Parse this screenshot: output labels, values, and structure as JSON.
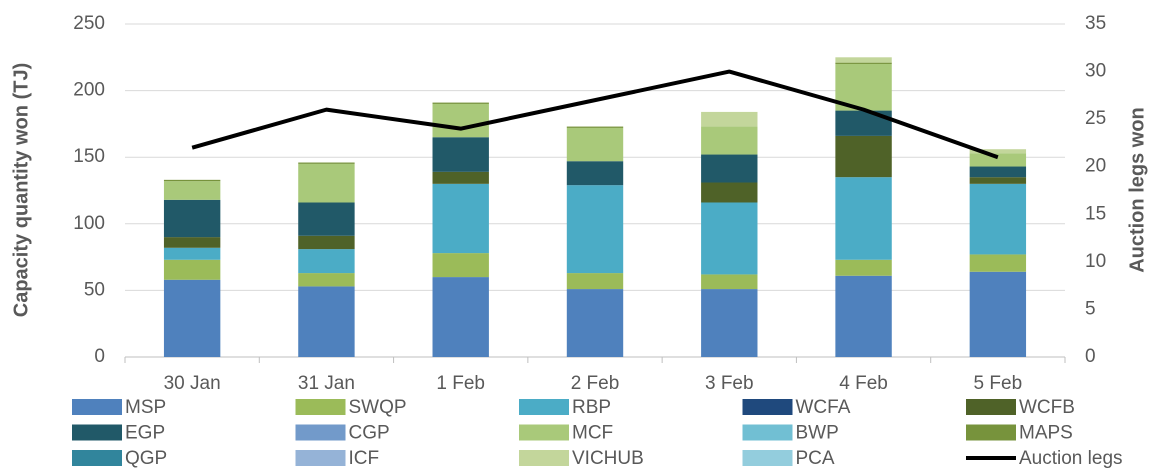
{
  "chart_data": {
    "type": "bar",
    "stacked": true,
    "categories": [
      "30 Jan",
      "31 Jan",
      "1 Feb",
      "2 Feb",
      "3 Feb",
      "4 Feb",
      "5 Feb"
    ],
    "ylabel": "Capacity quantity won (TJ)",
    "y2label": "Auction legs won",
    "ylim": [
      0,
      250
    ],
    "yticks": [
      0,
      50,
      100,
      150,
      200,
      250
    ],
    "y2lim": [
      0,
      35
    ],
    "y2ticks": [
      0,
      5,
      10,
      15,
      20,
      25,
      30,
      35
    ],
    "grid": true,
    "legend": "bottom",
    "series": [
      {
        "name": "MSP",
        "color": "#4f81bd",
        "values": [
          58,
          53,
          60,
          51,
          51,
          61,
          64
        ]
      },
      {
        "name": "SWQP",
        "color": "#9bbb59",
        "values": [
          15,
          10,
          18,
          12,
          11,
          12,
          13
        ]
      },
      {
        "name": "RBP",
        "color": "#4bacc6",
        "values": [
          9,
          18,
          52,
          66,
          54,
          62,
          53
        ]
      },
      {
        "name": "WCFA",
        "color": "#1f497d",
        "values": [
          0,
          0,
          0,
          0,
          0,
          0,
          0
        ]
      },
      {
        "name": "WCFB",
        "color": "#4f6228",
        "values": [
          8,
          10,
          9,
          0,
          15,
          31,
          5
        ]
      },
      {
        "name": "EGP",
        "color": "#215968",
        "values": [
          28,
          25,
          26,
          18,
          21,
          19,
          8
        ]
      },
      {
        "name": "CGP",
        "color": "#729aca",
        "values": [
          0,
          0,
          0,
          0,
          0,
          0,
          0
        ]
      },
      {
        "name": "MCF",
        "color": "#a9c97a",
        "values": [
          14,
          29,
          25,
          25,
          21,
          35,
          10
        ]
      },
      {
        "name": "BWP",
        "color": "#71bfd3",
        "values": [
          0,
          0,
          0,
          0,
          0,
          0,
          0
        ]
      },
      {
        "name": "MAPS",
        "color": "#77933c",
        "values": [
          1,
          1,
          1,
          1,
          0,
          1,
          0
        ]
      },
      {
        "name": "QGP",
        "color": "#31859c",
        "values": [
          0,
          0,
          0,
          0,
          0,
          0,
          0
        ]
      },
      {
        "name": "ICF",
        "color": "#95b3d7",
        "values": [
          0,
          0,
          0,
          0,
          0,
          0,
          0
        ]
      },
      {
        "name": "VICHUB",
        "color": "#c3d69b",
        "values": [
          0,
          0,
          0,
          0,
          11,
          4,
          3
        ]
      },
      {
        "name": "PCA",
        "color": "#93cddd",
        "values": [
          0,
          0,
          0,
          0,
          0,
          0,
          0
        ]
      },
      {
        "name": "Auction legs",
        "color": "#000000",
        "type": "line",
        "axis": "y2",
        "values": [
          22,
          26,
          24,
          27,
          30,
          26,
          21
        ]
      }
    ]
  }
}
